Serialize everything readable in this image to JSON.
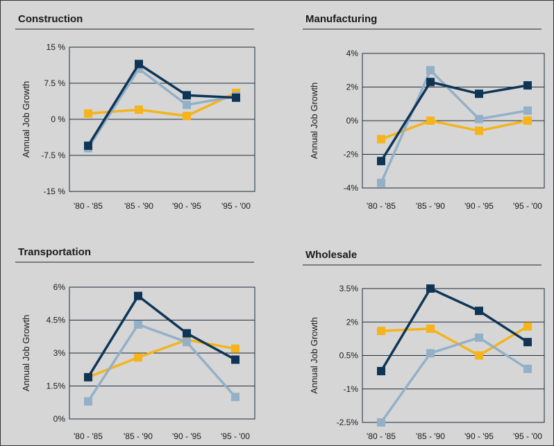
{
  "colors": {
    "navy": "#0f3556",
    "lightblue": "#93b0c7",
    "gold": "#f5b31c",
    "background": "#d6d6d6",
    "gridline": "#1a2a3a"
  },
  "chart_data": [
    {
      "type": "line",
      "title": "Construction",
      "ylabel": "Annual Job Growth",
      "categories": [
        "'80 - '85",
        "'85 - '90",
        "'90 - '95",
        "'95 - '00"
      ],
      "yticks": [
        "15 %",
        "7.5 %",
        "0 %",
        "-7.5 %",
        "-15 %"
      ],
      "ylim": [
        -15,
        15
      ],
      "series": [
        {
          "color": "gold",
          "values": [
            1.2,
            2.0,
            0.7,
            5.5
          ]
        },
        {
          "color": "lightblue",
          "values": [
            -6.0,
            10.5,
            3.0,
            4.8
          ]
        },
        {
          "color": "navy",
          "values": [
            -5.5,
            11.5,
            5.0,
            4.5
          ]
        }
      ]
    },
    {
      "type": "line",
      "title": "Manufacturing",
      "ylabel": "Annual Job Growth",
      "categories": [
        "'80 - '85",
        "'85 - '90",
        "'90 - '95",
        "'95 - '00"
      ],
      "yticks": [
        "4%",
        "2%",
        "0%",
        "-2%",
        "-4%"
      ],
      "ylim": [
        -4,
        4
      ],
      "series": [
        {
          "color": "gold",
          "values": [
            -1.1,
            0.0,
            -0.6,
            0.0
          ]
        },
        {
          "color": "lightblue",
          "values": [
            -3.7,
            3.0,
            0.1,
            0.6
          ]
        },
        {
          "color": "navy",
          "values": [
            -2.4,
            2.3,
            1.6,
            2.1
          ]
        }
      ]
    },
    {
      "type": "line",
      "title": "Transportation",
      "ylabel": "Annual Job Growth",
      "categories": [
        "'80 - '85",
        "'85 - '90",
        "'90 - '95",
        "'95 - '00"
      ],
      "yticks": [
        "6%",
        "4.5%",
        "3%",
        "1.5%",
        "0%"
      ],
      "ylim": [
        0,
        6
      ],
      "series": [
        {
          "color": "gold",
          "values": [
            1.9,
            2.8,
            3.6,
            3.2
          ]
        },
        {
          "color": "lightblue",
          "values": [
            0.8,
            4.3,
            3.5,
            1.0
          ]
        },
        {
          "color": "navy",
          "values": [
            1.9,
            5.6,
            3.9,
            2.7
          ]
        }
      ]
    },
    {
      "type": "line",
      "title": "Wholesale",
      "ylabel": "Annual Job Growth",
      "categories": [
        "'80 - '85",
        "'85 - '90",
        "'90 - '95",
        "'95 - '00"
      ],
      "yticks": [
        "3.5%",
        "2%",
        "0.5%",
        "-1%",
        "-2.5%"
      ],
      "ylim": [
        -2.5,
        3.5
      ],
      "series": [
        {
          "color": "gold",
          "values": [
            1.6,
            1.7,
            0.5,
            1.8
          ]
        },
        {
          "color": "lightblue",
          "values": [
            -2.5,
            0.6,
            1.3,
            -0.1
          ]
        },
        {
          "color": "navy",
          "values": [
            -0.2,
            3.5,
            2.5,
            1.1
          ]
        }
      ]
    }
  ]
}
